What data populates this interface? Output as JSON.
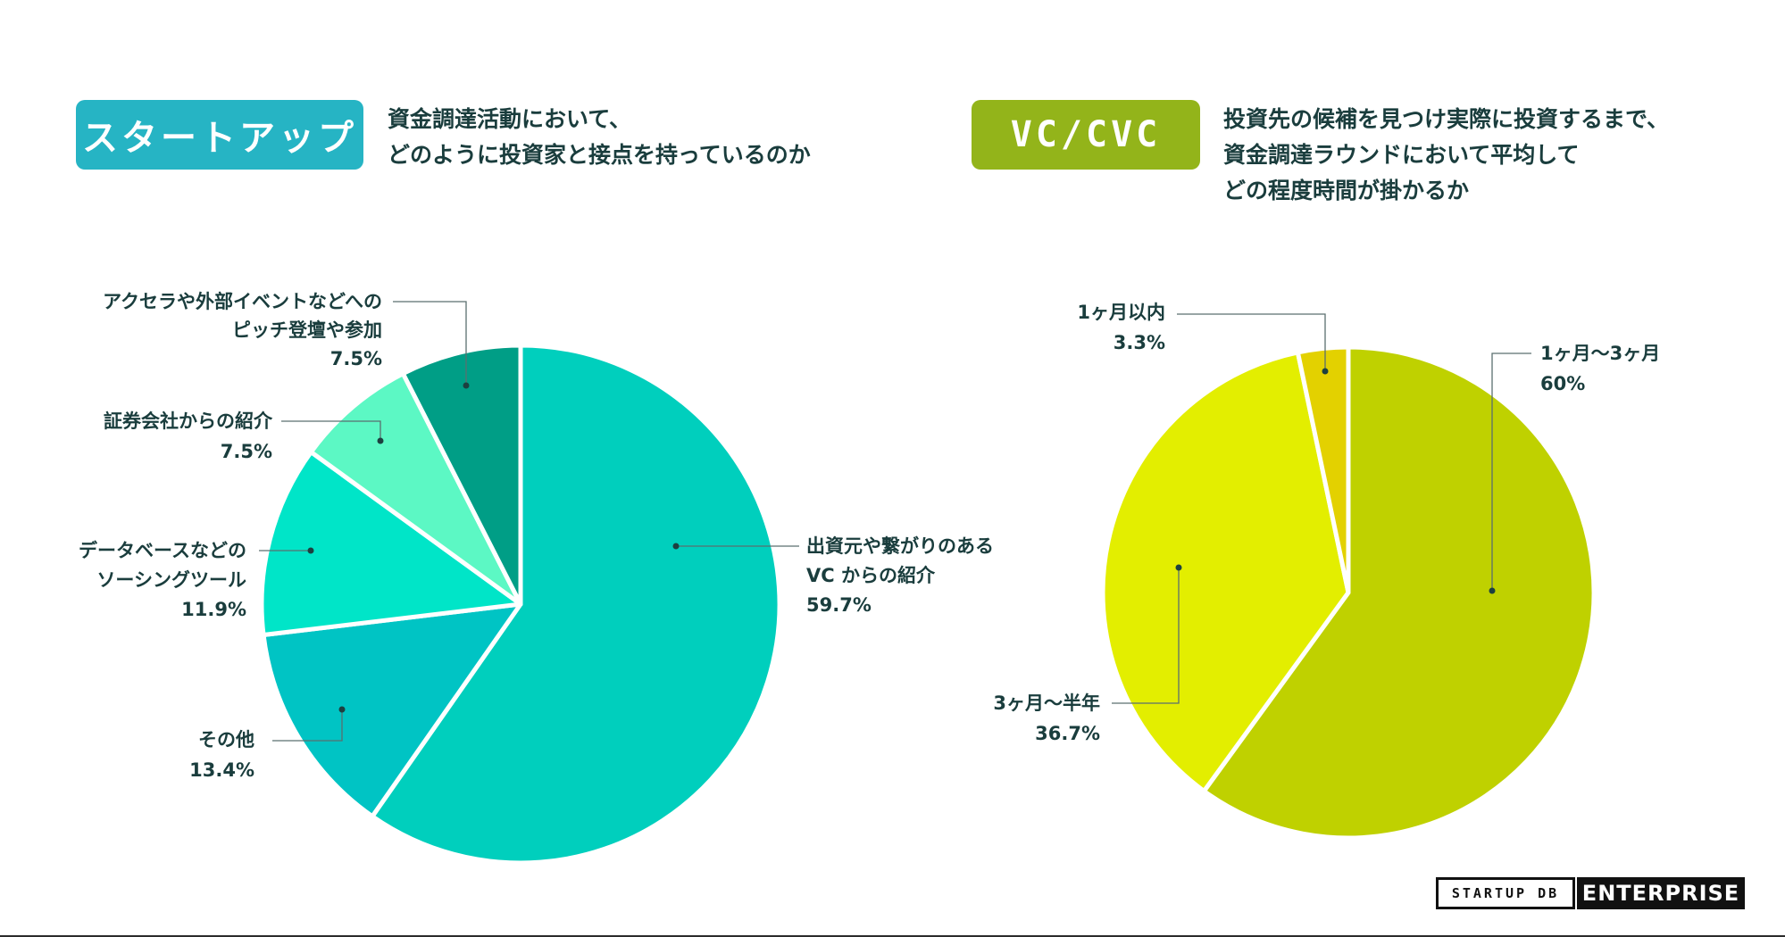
{
  "left": {
    "badge": "スタートアップ",
    "question": [
      "資金調達活動において、",
      "どのように投資家と接点を持っているのか"
    ],
    "badge_color": "#26b4c4"
  },
  "right": {
    "badge": "VC/CVC",
    "question": [
      "投資先の候補を見つけ実際に投資するまで、",
      "資金調達ラウンドにおいて平均して",
      "どの程度時間が掛かるか"
    ],
    "badge_color": "#93b41a"
  },
  "logo": {
    "startup_db": "STARTUP DB",
    "enterprise": "ENTERPRISE"
  },
  "chart_data": [
    {
      "type": "pie",
      "slices": [
        {
          "label": [
            "出資元や繋がりのある",
            "VC からの紹介"
          ],
          "value": 59.7,
          "value_text": "59.7%",
          "color": "#00cfbd"
        },
        {
          "label": [
            "その他"
          ],
          "value": 13.4,
          "value_text": "13.4%",
          "color": "#00c4c4"
        },
        {
          "label": [
            "データベースなどの",
            "ソーシングツール"
          ],
          "value": 11.9,
          "value_text": "11.9%",
          "color": "#00e5c8"
        },
        {
          "label": [
            "証券会社からの紹介"
          ],
          "value": 7.5,
          "value_text": "7.5%",
          "color": "#5cf8c4"
        },
        {
          "label": [
            "アクセラや外部イベントなどへの",
            "ピッチ登壇や参加"
          ],
          "value": 7.5,
          "value_text": "7.5%",
          "color": "#009e86"
        }
      ]
    },
    {
      "type": "pie",
      "slices": [
        {
          "label": [
            "1ヶ月〜3ヶ月"
          ],
          "value": 60,
          "value_text": "60%",
          "color": "#bfd100"
        },
        {
          "label": [
            "3ヶ月〜半年"
          ],
          "value": 36.7,
          "value_text": "36.7%",
          "color": "#e3ee00"
        },
        {
          "label": [
            "1ヶ月以内"
          ],
          "value": 3.3,
          "value_text": "3.3%",
          "color": "#e3d100"
        }
      ]
    }
  ]
}
